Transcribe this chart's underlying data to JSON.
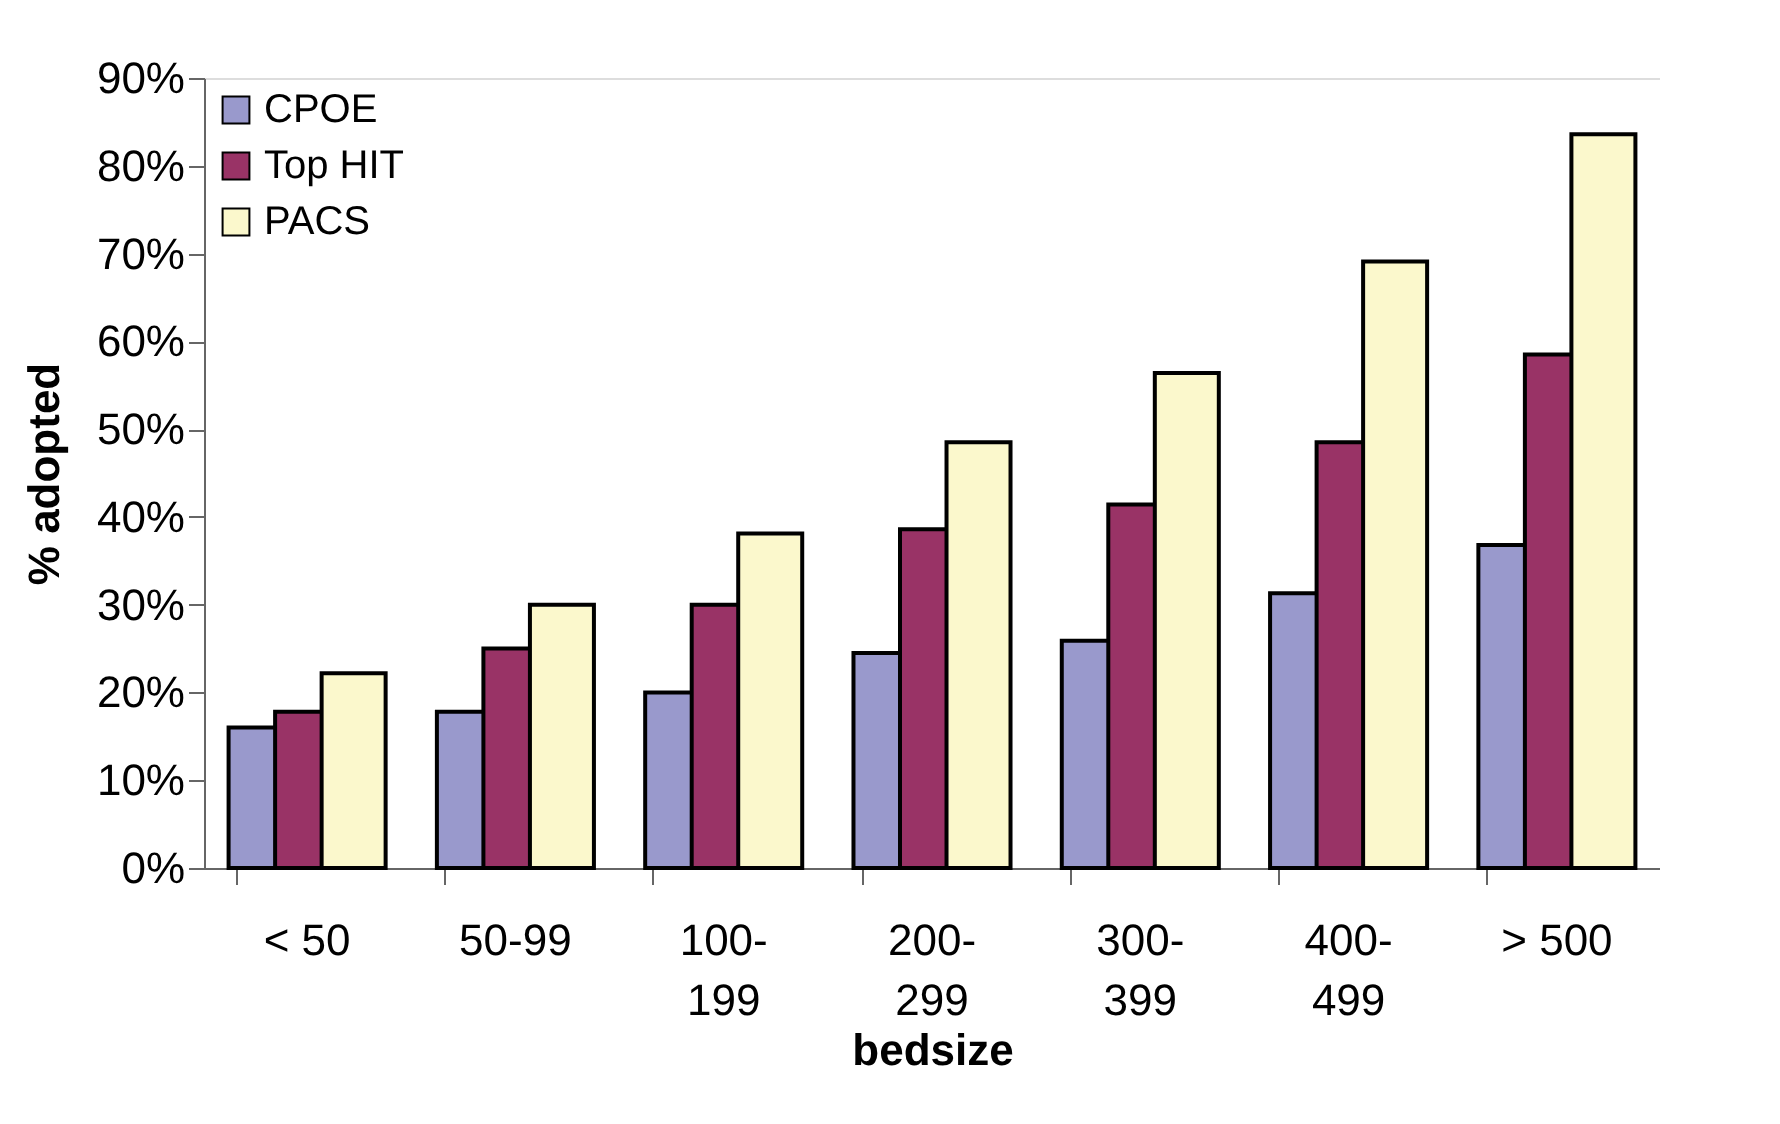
{
  "chart_data": {
    "type": "bar",
    "xlabel": "bedsize",
    "ylabel": "% adopted",
    "categories": [
      "< 50",
      "50-99",
      "100-\n199",
      "200-\n299",
      "300-\n399",
      "400-\n499",
      "> 500"
    ],
    "series": [
      {
        "name": "CPOE",
        "color": "#9999cc",
        "values": [
          16,
          17.8,
          20,
          24.5,
          25.9,
          31.3,
          36.8
        ]
      },
      {
        "name": "Top HIT",
        "color": "#993366",
        "values": [
          17.8,
          25,
          30,
          38.6,
          41.4,
          48.5,
          58.5
        ]
      },
      {
        "name": "PACS",
        "color": "#fbf8cc",
        "values": [
          22.2,
          30,
          38.1,
          48.5,
          56.4,
          69.1,
          83.6
        ]
      }
    ],
    "ylim": [
      0,
      90
    ],
    "yticks": [
      {
        "value": 0,
        "label": "0%"
      },
      {
        "value": 10,
        "label": "10%"
      },
      {
        "value": 20,
        "label": "20%"
      },
      {
        "value": 30,
        "label": "30%"
      },
      {
        "value": 40,
        "label": "40%"
      },
      {
        "value": 50,
        "label": "50%"
      },
      {
        "value": 60,
        "label": "60%"
      },
      {
        "value": 70,
        "label": "70%"
      },
      {
        "value": 80,
        "label": "80%"
      },
      {
        "value": 90,
        "label": "90%"
      }
    ],
    "grid": false,
    "legend": "top left"
  }
}
